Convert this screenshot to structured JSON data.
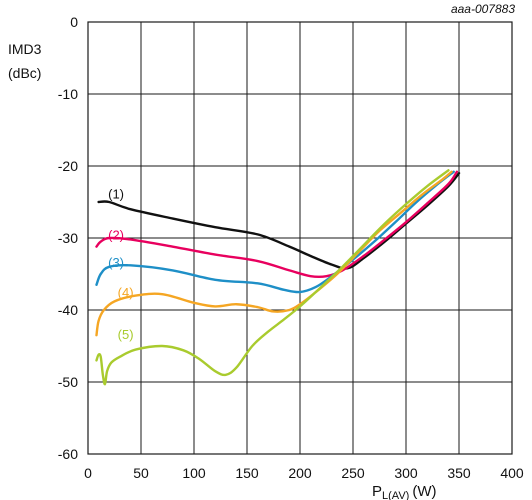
{
  "chart_data": {
    "type": "line",
    "reference_code": "aaa-007883",
    "ylabel_line1": "IMD3",
    "ylabel_line2": "(dBc)",
    "xlabel_main": "P",
    "xlabel_sub": "L(AV)",
    "xlabel_unit": "(W)",
    "xlim": [
      0,
      400
    ],
    "ylim": [
      -60,
      0
    ],
    "xticks": [
      "0",
      "50",
      "100",
      "150",
      "200",
      "250",
      "300",
      "350",
      "400"
    ],
    "yticks": [
      "0",
      "-10",
      "-20",
      "-30",
      "-40",
      "-50",
      "-60"
    ],
    "grid": true,
    "series": [
      {
        "name": "(1)",
        "color": "#111111",
        "label_at": [
          19,
          -24.5
        ],
        "x": [
          10,
          20,
          40,
          80,
          120,
          160,
          190,
          210,
          230,
          245,
          260,
          280,
          300,
          320,
          340,
          350
        ],
        "y": [
          -25.0,
          -25.0,
          -26.0,
          -27.3,
          -28.5,
          -29.5,
          -31.2,
          -32.5,
          -33.7,
          -34.2,
          -32.8,
          -30.5,
          -28.0,
          -25.5,
          -22.8,
          -21.0
        ]
      },
      {
        "name": "(2)",
        "color": "#e8005e",
        "label_at": [
          19,
          -30.2
        ],
        "x": [
          8,
          12,
          20,
          40,
          80,
          120,
          160,
          190,
          210,
          225,
          240,
          260,
          280,
          300,
          320,
          340,
          348
        ],
        "y": [
          -31.2,
          -30.5,
          -30.0,
          -30.2,
          -31.2,
          -32.3,
          -33.2,
          -34.5,
          -35.3,
          -35.3,
          -34.5,
          -32.5,
          -30.2,
          -27.8,
          -25.2,
          -22.5,
          -20.8
        ]
      },
      {
        "name": "(3)",
        "color": "#1e8fc7",
        "label_at": [
          19,
          -34.0
        ],
        "x": [
          8,
          12,
          20,
          40,
          80,
          120,
          160,
          185,
          200,
          215,
          230,
          250,
          270,
          290,
          310,
          330,
          345
        ],
        "y": [
          -36.5,
          -35.0,
          -34.0,
          -33.8,
          -34.5,
          -35.8,
          -36.3,
          -37.2,
          -37.5,
          -36.8,
          -35.3,
          -33.0,
          -30.5,
          -27.8,
          -25.0,
          -22.5,
          -20.8
        ]
      },
      {
        "name": "(4)",
        "color": "#f5a623",
        "label_at": [
          28,
          -38.2
        ],
        "x": [
          8,
          10,
          15,
          25,
          45,
          70,
          100,
          120,
          140,
          160,
          175,
          190,
          200,
          215,
          235,
          255,
          275,
          295,
          315,
          335,
          343
        ],
        "y": [
          -43.5,
          -41.5,
          -40.0,
          -38.8,
          -38.0,
          -37.8,
          -39.0,
          -39.5,
          -39.2,
          -39.6,
          -40.2,
          -40.0,
          -39.2,
          -37.5,
          -35.0,
          -32.0,
          -29.0,
          -26.5,
          -24.0,
          -21.8,
          -20.8
        ]
      },
      {
        "name": "(5)",
        "color": "#a9cb2e",
        "label_at": [
          28,
          -44.0
        ],
        "x": [
          8,
          10,
          12,
          14,
          16,
          18,
          22,
          30,
          45,
          70,
          90,
          105,
          120,
          130,
          140,
          155,
          170,
          185,
          200,
          220,
          240,
          260,
          280,
          300,
          320,
          340
        ],
        "y": [
          -47.0,
          -46.2,
          -46.5,
          -49.0,
          -50.3,
          -48.5,
          -47.3,
          -46.5,
          -45.5,
          -45.0,
          -45.6,
          -46.8,
          -48.5,
          -49.0,
          -48.0,
          -45.0,
          -43.0,
          -41.3,
          -39.5,
          -36.8,
          -34.0,
          -31.0,
          -28.0,
          -25.3,
          -22.8,
          -20.6
        ]
      }
    ]
  }
}
